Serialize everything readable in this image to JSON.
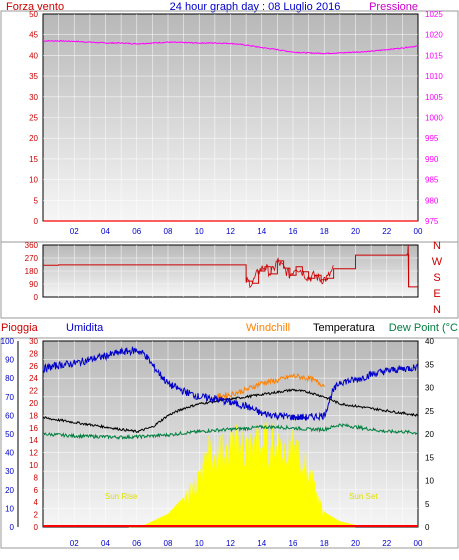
{
  "header": {
    "left_title": "Forza vento",
    "center_title": "24 hour graph day : 08 Luglio 2016",
    "right_title": "Pressione"
  },
  "colors": {
    "wind_speed": "#ff0000",
    "pressure": "#ff00ff",
    "wind_dir": "#cc0000",
    "humidity": "#0000cc",
    "windchill": "#ff8000",
    "temperature": "#000000",
    "dew_point": "#007f3f",
    "rain": "#ff0000",
    "solar": "#ffff00",
    "axis_text_left": "#cc0000",
    "axis_text_blue": "#0000cc"
  },
  "chart_data": [
    {
      "type": "line",
      "id": "wind-pressure",
      "x_unit": "hour of day",
      "x_ticks": [
        "02",
        "04",
        "06",
        "08",
        "10",
        "12",
        "14",
        "16",
        "18",
        "20",
        "22",
        "00"
      ],
      "xlim": [
        0,
        24
      ],
      "y_left": {
        "label": "Forza vento",
        "ticks": [
          "0",
          "5",
          "10",
          "15",
          "20",
          "25",
          "30",
          "35",
          "40",
          "45",
          "50"
        ],
        "ylim": [
          0,
          50
        ]
      },
      "y_right": {
        "label": "Pressione",
        "ticks": [
          "975",
          "980",
          "985",
          "990",
          "995",
          "1000",
          "1005",
          "1010",
          "1015",
          "1020",
          "1025"
        ],
        "ylim": [
          975,
          1025
        ]
      },
      "series": [
        {
          "name": "Forza vento",
          "axis": "left",
          "x": [
            0,
            24
          ],
          "y": [
            0,
            0
          ]
        },
        {
          "name": "Pressione",
          "axis": "right",
          "x": [
            0,
            1,
            2,
            3,
            4,
            5,
            6,
            7,
            8,
            9,
            10,
            11,
            12,
            13,
            14,
            15,
            16,
            17,
            18,
            19,
            20,
            21,
            22,
            23,
            24
          ],
          "y": [
            1018.5,
            1018.5,
            1018.4,
            1018.2,
            1018.0,
            1018.0,
            1017.8,
            1018.0,
            1018.2,
            1018.1,
            1018.0,
            1018.0,
            1017.9,
            1017.5,
            1016.9,
            1016.4,
            1015.8,
            1015.6,
            1015.5,
            1015.6,
            1015.8,
            1016.0,
            1016.4,
            1016.8,
            1017.3
          ]
        }
      ],
      "grid": true
    },
    {
      "type": "line",
      "id": "wind-direction",
      "x_unit": "hour of day",
      "xlim": [
        0,
        24
      ],
      "y_left": {
        "ticks": [
          "0",
          "90",
          "180",
          "270",
          "360"
        ],
        "ylim": [
          0,
          360
        ]
      },
      "y_right": {
        "ticks": [
          "N",
          "W",
          "S",
          "E",
          "N"
        ]
      },
      "series": [
        {
          "name": "wind direction",
          "x": [
            0,
            1,
            5,
            10,
            12.6,
            13.0,
            13.4,
            13.8,
            14.2,
            14.6,
            15.0,
            15.4,
            15.8,
            16.2,
            16.6,
            17.0,
            17.4,
            17.8,
            18.2,
            18.6,
            20,
            22,
            23.3,
            23.4,
            24
          ],
          "y": [
            220,
            222,
            222,
            222,
            222,
            110,
            95,
            180,
            210,
            160,
            250,
            200,
            150,
            210,
            175,
            130,
            150,
            120,
            130,
            195,
            290,
            290,
            295,
            70,
            70
          ]
        }
      ],
      "grid": true
    },
    {
      "type": "line",
      "id": "weather-multi",
      "x_unit": "hour of day",
      "xlim": [
        0,
        24
      ],
      "legend": [
        "Pioggia",
        "Umidita",
        "Windchill",
        "Temperatura",
        "Dew Point (°C"
      ],
      "y_left_outer": {
        "label": "Umidita",
        "ticks": [
          "0",
          "10",
          "20",
          "30",
          "40",
          "50",
          "60",
          "70",
          "80",
          "90",
          "100"
        ],
        "ylim": [
          0,
          100
        ]
      },
      "y_left_inner": {
        "ticks": [
          "0",
          "2",
          "4",
          "6",
          "8",
          "10",
          "12",
          "14",
          "16",
          "18",
          "20",
          "22",
          "24",
          "26",
          "28",
          "30"
        ],
        "ylim": [
          0,
          30
        ]
      },
      "y_right": {
        "label": "Dew Point (°C",
        "ticks": [
          "0",
          "5",
          "10",
          "15",
          "20",
          "25",
          "30",
          "35",
          "40"
        ],
        "ylim": [
          0,
          40
        ]
      },
      "annotations": [
        "Sun Rise",
        "Sun Set"
      ],
      "series": [
        {
          "name": "Umidita",
          "axis": "left_outer",
          "x": [
            0,
            1,
            2,
            3,
            4,
            5,
            6,
            6.5,
            7,
            8,
            9,
            10,
            11,
            12,
            13,
            14,
            15,
            16,
            17,
            18,
            18.5,
            19,
            20,
            21,
            22,
            23,
            24
          ],
          "y": [
            85,
            87,
            88,
            90,
            92,
            94,
            95,
            93,
            87,
            77,
            73,
            70,
            69,
            67,
            65,
            61,
            60,
            59,
            59,
            60,
            72,
            78,
            79,
            82,
            84,
            85,
            86
          ]
        },
        {
          "name": "Windchill",
          "axis": "right",
          "x": [
            11,
            12,
            13,
            14,
            15,
            16,
            17,
            18
          ],
          "y": [
            28,
            28.5,
            29.5,
            31,
            31.5,
            32.5,
            32,
            30.5
          ]
        },
        {
          "name": "Temperatura",
          "axis": "right",
          "x": [
            0,
            1,
            2,
            3,
            4,
            5,
            6,
            7,
            8,
            9,
            10,
            11,
            12,
            13,
            14,
            15,
            16,
            17,
            18,
            19,
            20,
            21,
            22,
            23,
            24
          ],
          "y": [
            23.5,
            23,
            22.5,
            22,
            21.5,
            21,
            20.5,
            21.5,
            24,
            25.5,
            26.5,
            27,
            27.5,
            28,
            28.5,
            29,
            29.5,
            29,
            28,
            26.5,
            26,
            25.5,
            25,
            24.5,
            24
          ]
        },
        {
          "name": "Dew Point",
          "axis": "right",
          "x": [
            0,
            1,
            2,
            3,
            4,
            5,
            6,
            7,
            8,
            9,
            10,
            11,
            12,
            13,
            14,
            15,
            16,
            17,
            18,
            19,
            20,
            21,
            22,
            23,
            24
          ],
          "y": [
            20,
            19.8,
            19.6,
            19.5,
            19.4,
            19.3,
            19.4,
            19.6,
            19.8,
            20.2,
            20.5,
            20.8,
            21,
            21.2,
            21.5,
            21.5,
            21.3,
            21,
            21,
            22,
            21.5,
            21,
            20.5,
            20.5,
            20.2
          ]
        },
        {
          "name": "Pioggia",
          "axis": "left_inner",
          "x": [
            0,
            24
          ],
          "y": [
            0,
            0
          ]
        },
        {
          "name": "solar",
          "axis": "left_outer",
          "x": [
            5.5,
            6.5,
            7,
            8,
            9,
            10,
            10.5,
            11,
            11.5,
            12,
            13,
            14,
            15,
            16,
            17,
            17.5,
            18,
            19,
            20
          ],
          "y": [
            0,
            1,
            3,
            7,
            16,
            32,
            48,
            52,
            48,
            54,
            52,
            55,
            54,
            50,
            38,
            22,
            8,
            3,
            1
          ]
        }
      ],
      "grid": true
    }
  ]
}
